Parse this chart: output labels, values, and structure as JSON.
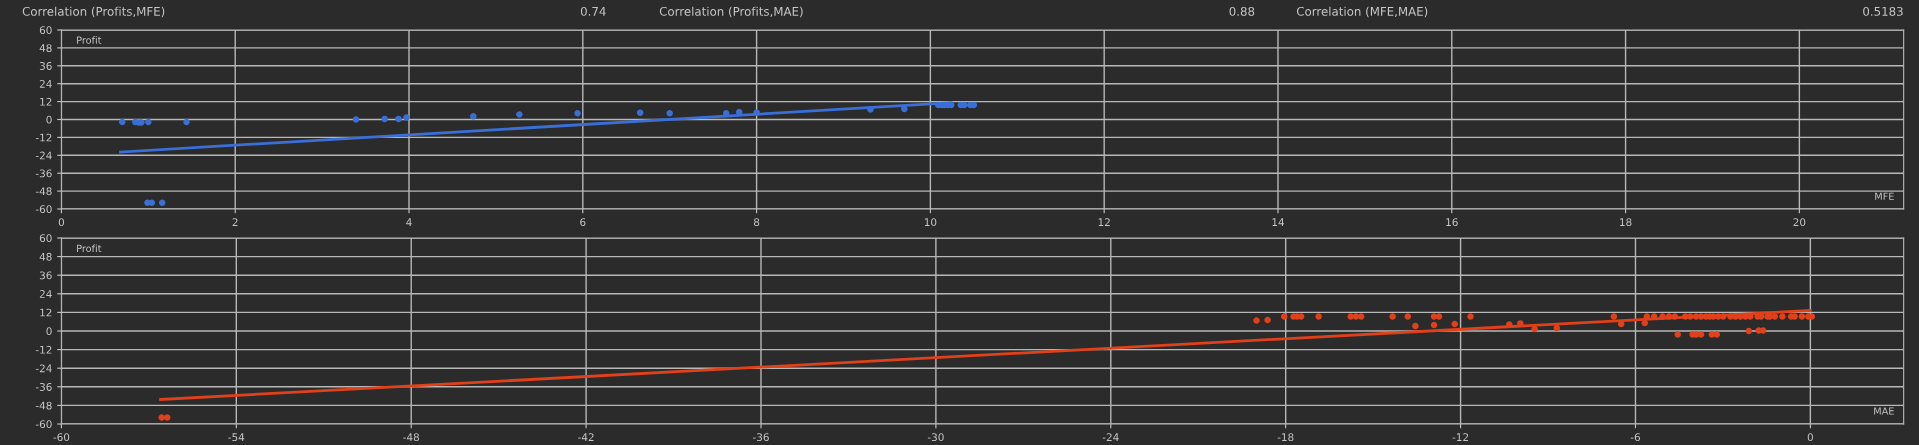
{
  "chart_data": [
    {
      "type": "scatter",
      "ylabel": "Profit",
      "xlabel": "MFE",
      "annotations": [
        "Correlation (Profits,MFE)",
        "0.74",
        "Correlation (Profits,MAE)",
        "0.88",
        "Correlation (MFE,MAE)",
        "0.5183"
      ],
      "xlim": [
        0,
        21.2
      ],
      "xticks": [
        0,
        2,
        4,
        6,
        8,
        10,
        12,
        14,
        16,
        18,
        20
      ],
      "ylim": [
        -60,
        60
      ],
      "yticks": [
        -60,
        -48,
        -36,
        -24,
        -12,
        0,
        12,
        24,
        36,
        48,
        60
      ],
      "grid": true,
      "series": [
        {
          "marker": "circle",
          "color": "#3a6fd8",
          "x": [
            0.7,
            0.85,
            0.89,
            0.92,
            1.0,
            1.44,
            0.99,
            1.04,
            1.16,
            3.39,
            3.72,
            3.88,
            3.97,
            4.74,
            5.27,
            5.94,
            6.66,
            7.0,
            7.65,
            7.8,
            8.0,
            9.31,
            9.7,
            10.09,
            10.13,
            10.16,
            10.2,
            10.24,
            10.35,
            10.39,
            10.46,
            10.5
          ],
          "values": [
            -1.7,
            -1.7,
            -2,
            -2,
            -1.7,
            -1.7,
            -55.8,
            -55.8,
            -55.8,
            0,
            0.4,
            0.4,
            1.3,
            2.1,
            3.4,
            4.2,
            4.6,
            4.2,
            4.2,
            5,
            4.6,
            6.7,
            7.1,
            9.7,
            9.7,
            9.7,
            9.7,
            9.7,
            9.7,
            9.7,
            9.7,
            9.7
          ]
        },
        {
          "type": "line",
          "color": "#3a6fd8",
          "x": [
            0.68,
            10.24
          ],
          "values": [
            -21.8,
            11.3
          ]
        }
      ]
    },
    {
      "type": "scatter",
      "ylabel": "Profit",
      "xlabel": "MAE",
      "xlim": [
        -60,
        3.2
      ],
      "xticks": [
        -60,
        -54,
        -48,
        -42,
        -36,
        -30,
        -24,
        -18,
        -12,
        -6,
        0
      ],
      "ylim": [
        -60,
        60
      ],
      "yticks": [
        -60,
        -48,
        -36,
        -24,
        -12,
        0,
        12,
        24,
        36,
        48,
        60
      ],
      "grid": true,
      "series": [
        {
          "marker": "circle",
          "color": "#e0401a",
          "x": [
            -56.56,
            -56.37,
            -19.0,
            -18.62,
            -18.05,
            -17.73,
            -17.61,
            -17.47,
            -16.87,
            -15.77,
            -15.59,
            -15.41,
            -14.33,
            -13.81,
            -13.55,
            -12.91,
            -12.74,
            -12.91,
            -12.2,
            -11.66,
            -10.33,
            -9.95,
            -9.46,
            -8.7,
            -6.74,
            -6.49,
            -5.68,
            -5.61,
            -5.36,
            -5.07,
            -4.85,
            -4.65,
            -4.29,
            -4.12,
            -3.92,
            -3.75,
            -3.58,
            -3.45,
            -3.33,
            -3.16,
            -2.99,
            -2.74,
            -2.57,
            -2.4,
            -2.23,
            -2.06,
            -1.81,
            -1.69,
            -1.47,
            -1.39,
            -1.22,
            -0.96,
            -0.66,
            -0.54,
            -0.29,
            -0.07,
            0.05,
            -4.55,
            -4.04,
            -3.92,
            -3.75,
            -3.38,
            -3.21,
            -2.11,
            -1.77,
            -1.62
          ],
          "values": [
            -55.8,
            -55.8,
            6.8,
            7.1,
            9.4,
            9.4,
            9.4,
            9.4,
            9.4,
            9.4,
            9.4,
            9.4,
            9.4,
            9.4,
            3.2,
            9.4,
            9.4,
            3.9,
            4.5,
            9.4,
            4.2,
            4.9,
            1.3,
            1.9,
            9.4,
            4.5,
            5.2,
            9.4,
            9.4,
            9.4,
            9.4,
            9.4,
            9.4,
            9.4,
            9.4,
            9.4,
            9.4,
            9.4,
            9.4,
            9.4,
            9.4,
            9.4,
            9.4,
            9.4,
            9.4,
            9.4,
            9.4,
            9.4,
            9.4,
            9.4,
            9.4,
            9.4,
            9.4,
            9.4,
            9.4,
            9.4,
            9.4,
            -2.3,
            -2.3,
            -2.3,
            -2.3,
            -2.3,
            -2.3,
            0,
            0.3,
            0.3
          ]
        },
        {
          "type": "line",
          "color": "#e0401a",
          "x": [
            -56.6,
            0
          ],
          "values": [
            -44.2,
            13.3
          ]
        }
      ]
    }
  ]
}
